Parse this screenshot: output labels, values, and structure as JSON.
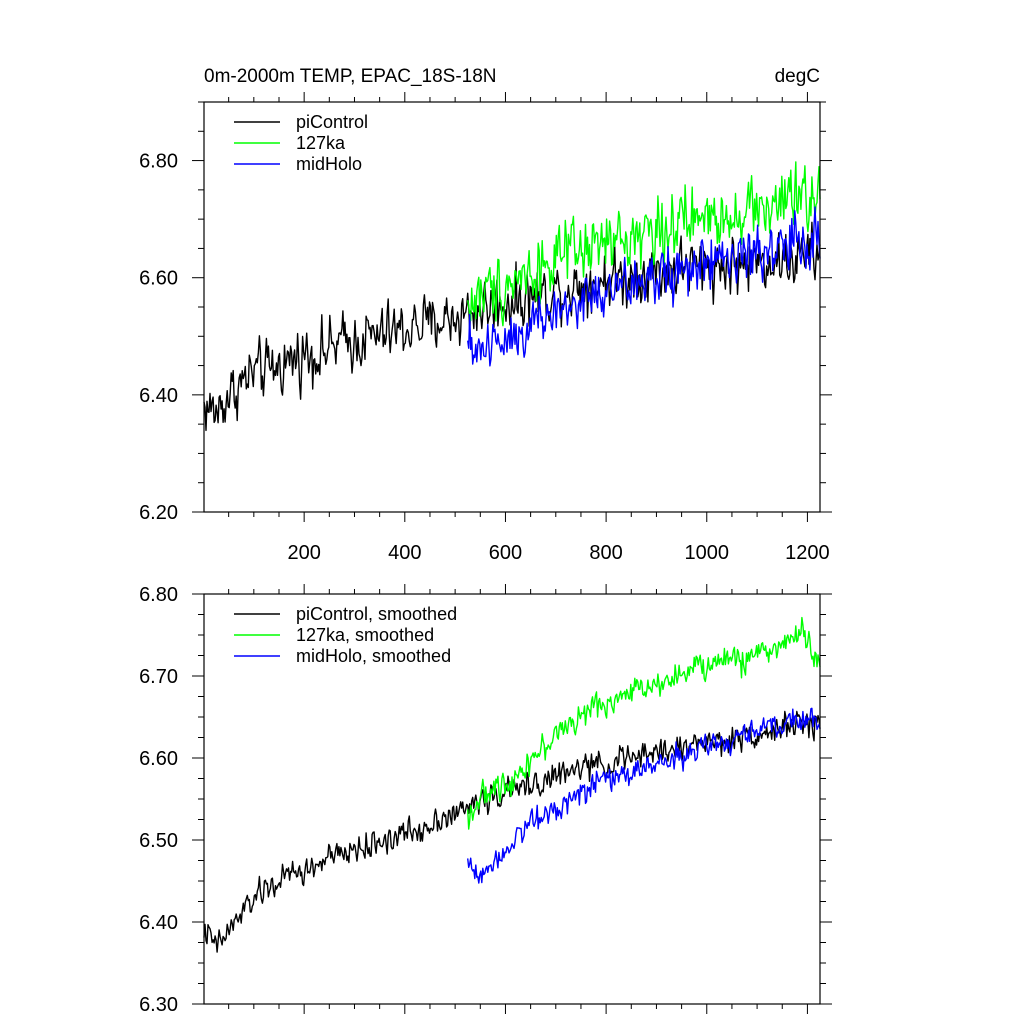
{
  "chart_data": [
    {
      "type": "line",
      "title": "0m-2000m TEMP, EPAC_18S-18N",
      "units": "degC",
      "xlim": [
        1,
        1225
      ],
      "ylim": [
        6.2,
        6.9
      ],
      "xticks": [
        200,
        400,
        600,
        800,
        1000,
        1200
      ],
      "xtick_labels": [
        "200",
        "400",
        "600",
        "800",
        "1000",
        "1200"
      ],
      "yticks": [
        6.2,
        6.4,
        6.6,
        6.8
      ],
      "ytick_labels": [
        "6.20",
        "6.40",
        "6.60",
        "6.80"
      ],
      "legend": "top-left",
      "series": [
        {
          "name": "piControl",
          "color": "#000000",
          "x_start": 1,
          "x_end": 1225,
          "step": 25,
          "values": [
            6.38,
            6.37,
            6.4,
            6.42,
            6.44,
            6.44,
            6.45,
            6.46,
            6.47,
            6.47,
            6.48,
            6.49,
            6.49,
            6.5,
            6.5,
            6.51,
            6.51,
            6.52,
            6.52,
            6.53,
            6.53,
            6.54,
            6.55,
            6.55,
            6.56,
            6.56,
            6.57,
            6.57,
            6.58,
            6.58,
            6.59,
            6.59,
            6.6,
            6.6,
            6.6,
            6.61,
            6.61,
            6.61,
            6.62,
            6.62,
            6.62,
            6.62,
            6.62,
            6.62,
            6.63,
            6.63,
            6.63,
            6.63,
            6.64,
            6.64
          ],
          "noise": 0.045
        },
        {
          "name": "127ka",
          "color": "#00ff00",
          "x_start": 525,
          "x_end": 1225,
          "step": 25,
          "values": [
            6.55,
            6.57,
            6.58,
            6.59,
            6.6,
            6.61,
            6.62,
            6.63,
            6.64,
            6.64,
            6.65,
            6.66,
            6.66,
            6.67,
            6.68,
            6.68,
            6.69,
            6.69,
            6.7,
            6.7,
            6.71,
            6.71,
            6.72,
            6.72,
            6.72,
            6.73,
            6.73,
            6.74,
            6.73
          ],
          "noise": 0.05
        },
        {
          "name": "midHolo",
          "color": "#0000ff",
          "x_start": 525,
          "x_end": 1225,
          "step": 25,
          "values": [
            6.48,
            6.48,
            6.49,
            6.5,
            6.51,
            6.52,
            6.53,
            6.54,
            6.55,
            6.56,
            6.57,
            6.57,
            6.58,
            6.59,
            6.59,
            6.6,
            6.61,
            6.61,
            6.62,
            6.62,
            6.63,
            6.63,
            6.64,
            6.64,
            6.65,
            6.65,
            6.66,
            6.66,
            6.66
          ],
          "noise": 0.045
        }
      ]
    },
    {
      "type": "line",
      "title": "",
      "xlim": [
        1,
        1225
      ],
      "ylim": [
        6.3,
        6.8
      ],
      "yticks": [
        6.3,
        6.4,
        6.5,
        6.6,
        6.7,
        6.8
      ],
      "ytick_labels": [
        "6.30",
        "6.40",
        "6.50",
        "6.60",
        "6.70",
        "6.80"
      ],
      "legend": "top-left",
      "series": [
        {
          "name": "piControl, smoothed",
          "color": "#000000",
          "x_start": 1,
          "x_end": 1225,
          "step": 25,
          "values": [
            6.39,
            6.37,
            6.39,
            6.41,
            6.43,
            6.44,
            6.45,
            6.46,
            6.46,
            6.47,
            6.48,
            6.48,
            6.49,
            6.49,
            6.5,
            6.5,
            6.51,
            6.51,
            6.52,
            6.53,
            6.53,
            6.54,
            6.55,
            6.55,
            6.56,
            6.56,
            6.57,
            6.57,
            6.58,
            6.58,
            6.59,
            6.59,
            6.59,
            6.6,
            6.6,
            6.6,
            6.61,
            6.61,
            6.61,
            6.62,
            6.62,
            6.62,
            6.62,
            6.63,
            6.63,
            6.63,
            6.64,
            6.64,
            6.64,
            6.64
          ],
          "noise": 0.015
        },
        {
          "name": "127ka, smoothed",
          "color": "#00ff00",
          "x_start": 525,
          "x_end": 1225,
          "step": 25,
          "values": [
            6.53,
            6.55,
            6.56,
            6.57,
            6.58,
            6.6,
            6.61,
            6.63,
            6.64,
            6.65,
            6.66,
            6.67,
            6.67,
            6.68,
            6.69,
            6.69,
            6.7,
            6.7,
            6.71,
            6.71,
            6.72,
            6.72,
            6.72,
            6.73,
            6.73,
            6.74,
            6.75,
            6.75,
            6.71
          ],
          "noise": 0.015
        },
        {
          "name": "midHolo, smoothed",
          "color": "#0000ff",
          "x_start": 525,
          "x_end": 1225,
          "step": 25,
          "values": [
            6.47,
            6.46,
            6.47,
            6.49,
            6.51,
            6.52,
            6.53,
            6.54,
            6.55,
            6.56,
            6.57,
            6.57,
            6.58,
            6.58,
            6.59,
            6.59,
            6.6,
            6.6,
            6.61,
            6.61,
            6.62,
            6.62,
            6.63,
            6.63,
            6.64,
            6.64,
            6.65,
            6.65,
            6.64
          ],
          "noise": 0.014
        }
      ]
    }
  ]
}
